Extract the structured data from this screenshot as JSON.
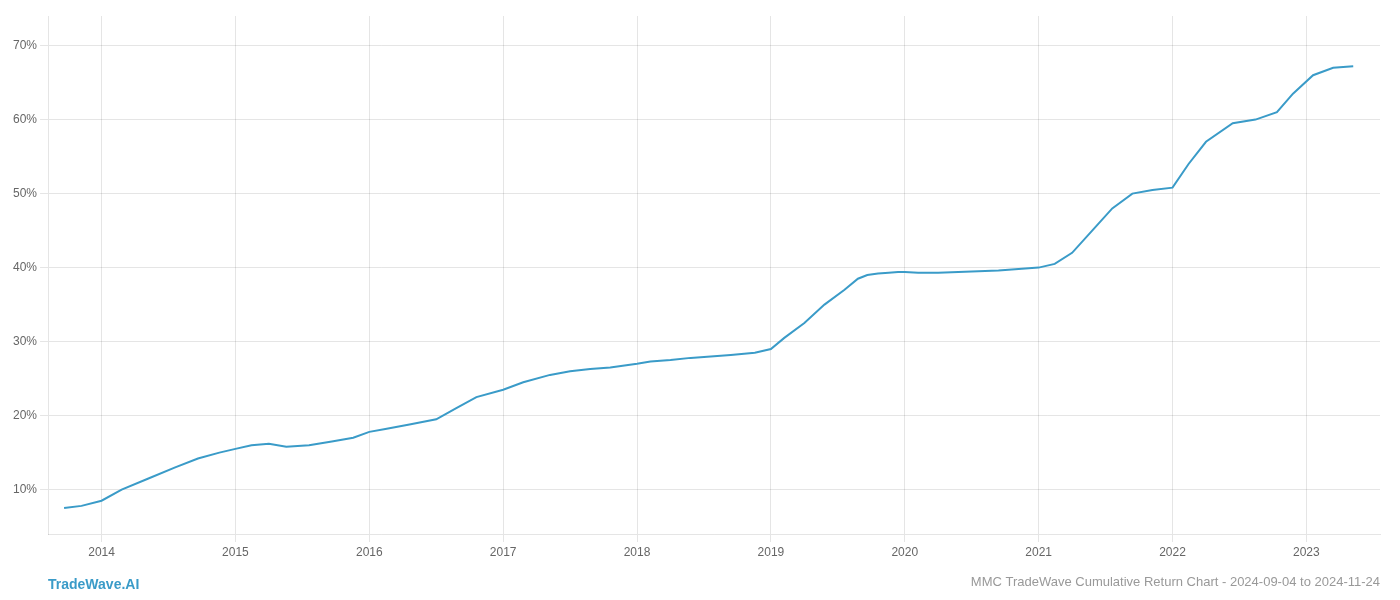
{
  "chart_data": {
    "type": "line",
    "title": "MMC TradeWave Cumulative Return Chart - 2024-09-04 to 2024-11-24",
    "annotations": [
      "TradeWave.AI"
    ],
    "x": [
      2013.72,
      2013.85,
      2014.0,
      2014.15,
      2014.35,
      2014.55,
      2014.72,
      2014.88,
      2015.0,
      2015.12,
      2015.25,
      2015.38,
      2015.55,
      2015.72,
      2015.88,
      2016.0,
      2016.12,
      2016.3,
      2016.5,
      2016.65,
      2016.8,
      2017.0,
      2017.15,
      2017.35,
      2017.5,
      2017.65,
      2017.8,
      2018.0,
      2018.1,
      2018.25,
      2018.4,
      2018.55,
      2018.7,
      2018.88,
      2019.0,
      2019.1,
      2019.25,
      2019.4,
      2019.55,
      2019.65,
      2019.72,
      2019.8,
      2019.88,
      2019.95,
      2020.0,
      2020.1,
      2020.25,
      2020.4,
      2020.55,
      2020.7,
      2020.85,
      2021.0,
      2021.12,
      2021.25,
      2021.4,
      2021.55,
      2021.7,
      2021.85,
      2022.0,
      2022.12,
      2022.25,
      2022.45,
      2022.62,
      2022.78,
      2022.9,
      2023.05,
      2023.2,
      2023.35
    ],
    "values": [
      7.5,
      7.8,
      8.5,
      10.0,
      11.5,
      13.0,
      14.2,
      15.0,
      15.5,
      16.0,
      16.2,
      15.8,
      16.0,
      16.5,
      17.0,
      17.8,
      18.2,
      18.8,
      19.5,
      21.0,
      22.5,
      23.5,
      24.5,
      25.5,
      26.0,
      26.3,
      26.5,
      27.0,
      27.3,
      27.5,
      27.8,
      28.0,
      28.2,
      28.5,
      29.0,
      30.5,
      32.5,
      35.0,
      37.0,
      38.5,
      39.0,
      39.2,
      39.3,
      39.4,
      39.4,
      39.3,
      39.3,
      39.4,
      39.5,
      39.6,
      39.8,
      40.0,
      40.5,
      42.0,
      45.0,
      48.0,
      50.0,
      50.5,
      50.8,
      54.0,
      57.0,
      59.5,
      60.0,
      61.0,
      63.5,
      66.0,
      67.0,
      67.2
    ],
    "color": "#3a9bc8",
    "xlim": [
      2013.6,
      2023.55
    ],
    "xticks": [
      2014,
      2015,
      2016,
      2017,
      2018,
      2019,
      2020,
      2021,
      2022,
      2023
    ],
    "ylim": [
      4,
      74
    ],
    "yticks": [
      {
        "value": 10,
        "label": "10%"
      },
      {
        "value": 20,
        "label": "20%"
      },
      {
        "value": 30,
        "label": "30%"
      },
      {
        "value": 40,
        "label": "40%"
      },
      {
        "value": 50,
        "label": "50%"
      },
      {
        "value": 60,
        "label": "60%"
      },
      {
        "value": 70,
        "label": "70%"
      }
    ],
    "grid": true
  }
}
